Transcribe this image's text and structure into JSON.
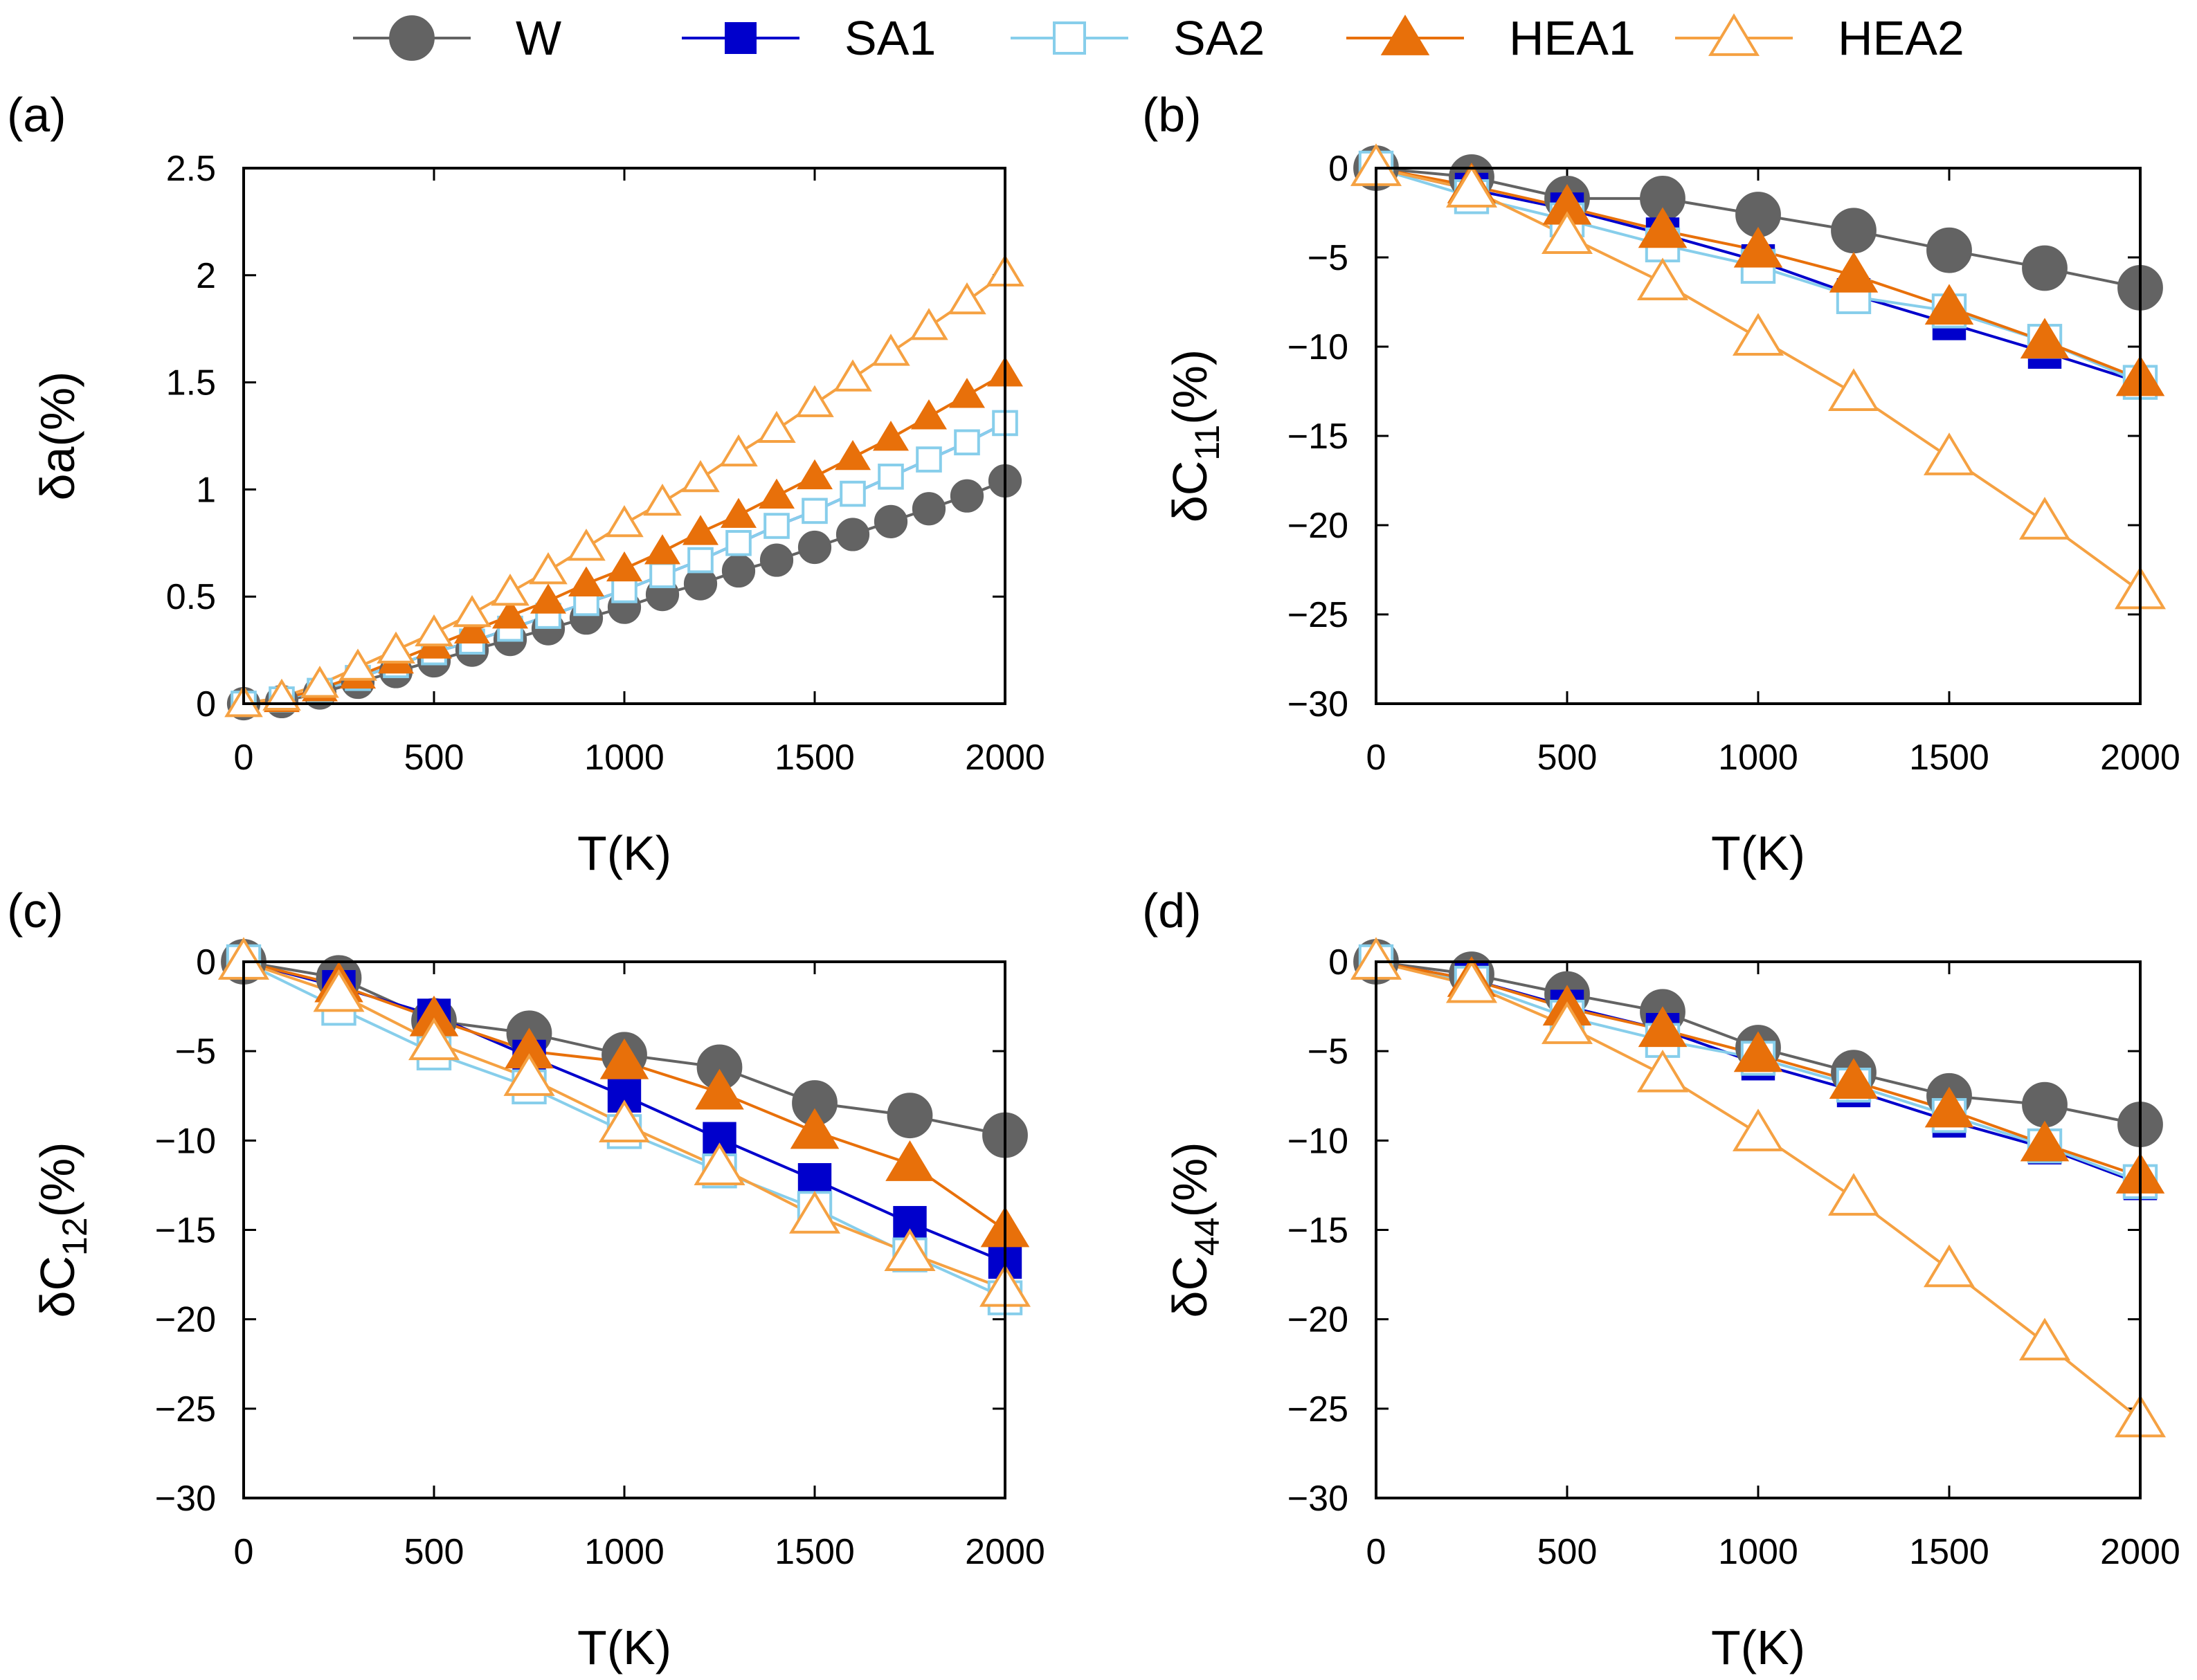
{
  "legend": [
    {
      "name": "W",
      "color": "#636363",
      "marker": "circle",
      "filled": true
    },
    {
      "name": "SA1",
      "color": "#0000cc",
      "marker": "square",
      "filled": true
    },
    {
      "name": "SA2",
      "color": "#87ceeb",
      "marker": "square",
      "filled": false
    },
    {
      "name": "HEA1",
      "color": "#e8700a",
      "marker": "triangle",
      "filled": true
    },
    {
      "name": "HEA2",
      "color": "#f5a142",
      "marker": "triangle",
      "filled": false
    }
  ],
  "chart_data": [
    {
      "panel": "(a)",
      "type": "line",
      "xlabel": "T(K)",
      "ylabel": "δa(%)",
      "ylabel_main": "δa(%)",
      "ylabel_sub": "",
      "ylabel_suffix": "",
      "xlim": [
        0,
        2000
      ],
      "ylim": [
        0,
        2.5
      ],
      "xticks": [
        0,
        500,
        1000,
        1500,
        2000
      ],
      "yticks": [
        0,
        0.5,
        1,
        1.5,
        2,
        2.5
      ],
      "ytick_labels": [
        "0",
        "0.5",
        "1",
        "1.5",
        "2",
        "2.5"
      ],
      "series": [
        {
          "name": "W",
          "x": [
            0,
            100,
            200,
            300,
            400,
            500,
            600,
            700,
            800,
            900,
            1000,
            1100,
            1200,
            1300,
            1400,
            1500,
            1600,
            1700,
            1800,
            1900,
            2000
          ],
          "y": [
            0,
            0.01,
            0.05,
            0.1,
            0.15,
            0.2,
            0.25,
            0.3,
            0.35,
            0.4,
            0.45,
            0.51,
            0.56,
            0.62,
            0.67,
            0.73,
            0.79,
            0.85,
            0.91,
            0.97,
            1.04
          ]
        },
        {
          "name": "SA1",
          "x": [
            0,
            100,
            200,
            300,
            400,
            500,
            600,
            700,
            800,
            900,
            1000,
            1100,
            1200,
            1300,
            1400,
            1500,
            1600,
            1700,
            1800,
            1900,
            2000
          ],
          "y": [
            0,
            0.02,
            0.06,
            0.12,
            0.18,
            0.24,
            0.29,
            0.35,
            0.41,
            0.47,
            0.53,
            0.6,
            0.67,
            0.75,
            0.83,
            0.9,
            0.98,
            1.06,
            1.14,
            1.22,
            1.31
          ]
        },
        {
          "name": "SA2",
          "x": [
            0,
            100,
            200,
            300,
            400,
            500,
            600,
            700,
            800,
            900,
            1000,
            1100,
            1200,
            1300,
            1400,
            1500,
            1600,
            1700,
            1800,
            1900,
            2000
          ],
          "y": [
            0,
            0.02,
            0.06,
            0.12,
            0.18,
            0.24,
            0.29,
            0.35,
            0.41,
            0.47,
            0.53,
            0.6,
            0.67,
            0.75,
            0.83,
            0.9,
            0.98,
            1.06,
            1.14,
            1.22,
            1.31
          ]
        },
        {
          "name": "HEA1",
          "x": [
            0,
            100,
            200,
            300,
            400,
            500,
            600,
            700,
            800,
            900,
            1000,
            1100,
            1200,
            1300,
            1400,
            1500,
            1600,
            1700,
            1800,
            1900,
            2000
          ],
          "y": [
            0,
            0.02,
            0.07,
            0.13,
            0.2,
            0.27,
            0.34,
            0.41,
            0.48,
            0.56,
            0.63,
            0.71,
            0.8,
            0.88,
            0.97,
            1.06,
            1.15,
            1.24,
            1.34,
            1.44,
            1.54
          ]
        },
        {
          "name": "HEA2",
          "x": [
            0,
            100,
            200,
            300,
            400,
            500,
            600,
            700,
            800,
            900,
            1000,
            1100,
            1200,
            1300,
            1400,
            1500,
            1600,
            1700,
            1800,
            1900,
            2000
          ],
          "y": [
            0,
            0.03,
            0.09,
            0.17,
            0.25,
            0.33,
            0.42,
            0.52,
            0.62,
            0.73,
            0.84,
            0.94,
            1.05,
            1.17,
            1.28,
            1.4,
            1.52,
            1.64,
            1.76,
            1.88,
            2.01
          ]
        }
      ]
    },
    {
      "panel": "(b)",
      "type": "line",
      "xlabel": "T(K)",
      "ylabel": "δC11(%)",
      "ylabel_main": "δC",
      "ylabel_sub": "11",
      "ylabel_suffix": "(%)",
      "xlim": [
        0,
        2000
      ],
      "ylim": [
        -30,
        0
      ],
      "xticks": [
        0,
        500,
        1000,
        1500,
        2000
      ],
      "yticks": [
        -30,
        -25,
        -20,
        -15,
        -10,
        -5,
        0
      ],
      "ytick_labels": [
        "−30",
        "−25",
        "−20",
        "−15",
        "−10",
        "−5",
        "0"
      ],
      "series": [
        {
          "name": "W",
          "x": [
            0,
            250,
            500,
            750,
            1000,
            1250,
            1500,
            1750,
            2000
          ],
          "y": [
            0,
            -0.5,
            -1.7,
            -1.7,
            -2.6,
            -3.5,
            -4.6,
            -5.6,
            -6.7
          ]
        },
        {
          "name": "SA1",
          "x": [
            0,
            250,
            500,
            750,
            1000,
            1250,
            1500,
            1750,
            2000
          ],
          "y": [
            0,
            -1.2,
            -2.3,
            -3.7,
            -5.2,
            -7.1,
            -8.7,
            -10.3,
            -12.0
          ]
        },
        {
          "name": "SA2",
          "x": [
            0,
            250,
            500,
            750,
            1000,
            1250,
            1500,
            1750,
            2000
          ],
          "y": [
            0,
            -1.6,
            -2.9,
            -4.3,
            -5.5,
            -7.2,
            -8.0,
            -9.7,
            -12.0
          ]
        },
        {
          "name": "HEA1",
          "x": [
            0,
            250,
            500,
            750,
            1000,
            1250,
            1500,
            1750,
            2000
          ],
          "y": [
            0,
            -1.0,
            -2.2,
            -3.5,
            -4.6,
            -6.0,
            -7.8,
            -9.7,
            -11.8
          ]
        },
        {
          "name": "HEA2",
          "x": [
            0,
            250,
            500,
            750,
            1000,
            1250,
            1500,
            1750,
            2000
          ],
          "y": [
            0,
            -1.2,
            -3.8,
            -6.4,
            -9.5,
            -12.6,
            -16.2,
            -19.8,
            -23.7
          ]
        }
      ]
    },
    {
      "panel": "(c)",
      "type": "line",
      "xlabel": "T(K)",
      "ylabel": "δC12(%)",
      "ylabel_main": "δC",
      "ylabel_sub": "12",
      "ylabel_suffix": "(%)",
      "xlim": [
        0,
        2000
      ],
      "ylim": [
        -30,
        0
      ],
      "xticks": [
        0,
        500,
        1000,
        1500,
        2000
      ],
      "yticks": [
        -30,
        -25,
        -20,
        -15,
        -10,
        -5,
        0
      ],
      "ytick_labels": [
        "−30",
        "−25",
        "−20",
        "−15",
        "−10",
        "−5",
        "0"
      ],
      "series": [
        {
          "name": "W",
          "x": [
            0,
            250,
            500,
            750,
            1000,
            1250,
            1500,
            1750,
            2000
          ],
          "y": [
            0,
            -0.9,
            -3.3,
            -4.0,
            -5.2,
            -5.9,
            -7.9,
            -8.6,
            -9.7
          ]
        },
        {
          "name": "SA1",
          "x": [
            0,
            250,
            500,
            750,
            1000,
            1250,
            1500,
            1750,
            2000
          ],
          "y": [
            0,
            -1.4,
            -3.0,
            -5.3,
            -7.5,
            -9.9,
            -12.2,
            -14.6,
            -16.8
          ]
        },
        {
          "name": "SA2",
          "x": [
            0,
            250,
            500,
            750,
            1000,
            1250,
            1500,
            1750,
            2000
          ],
          "y": [
            0,
            -2.6,
            -5.1,
            -7.0,
            -9.5,
            -11.7,
            -13.8,
            -16.4,
            -18.8
          ]
        },
        {
          "name": "HEA1",
          "x": [
            0,
            250,
            500,
            750,
            1000,
            1250,
            1500,
            1750,
            2000
          ],
          "y": [
            0,
            -1.3,
            -3.2,
            -5.0,
            -5.6,
            -7.3,
            -9.5,
            -11.3,
            -15.0
          ]
        },
        {
          "name": "HEA2",
          "x": [
            0,
            250,
            500,
            750,
            1000,
            1250,
            1500,
            1750,
            2000
          ],
          "y": [
            0,
            -1.8,
            -4.5,
            -6.5,
            -9.1,
            -11.5,
            -14.2,
            -16.3,
            -18.3
          ]
        }
      ]
    },
    {
      "panel": "(d)",
      "type": "line",
      "xlabel": "T(K)",
      "ylabel": "δC44(%)",
      "ylabel_main": "δC",
      "ylabel_sub": "44",
      "ylabel_suffix": "(%)",
      "xlim": [
        0,
        2000
      ],
      "ylim": [
        -30,
        0
      ],
      "xticks": [
        0,
        500,
        1000,
        1500,
        2000
      ],
      "yticks": [
        -30,
        -25,
        -20,
        -15,
        -10,
        -5,
        0
      ],
      "ytick_labels": [
        "−30",
        "−25",
        "−20",
        "−15",
        "−10",
        "−5",
        "0"
      ],
      "series": [
        {
          "name": "W",
          "x": [
            0,
            250,
            500,
            750,
            1000,
            1250,
            1500,
            1750,
            2000
          ],
          "y": [
            0,
            -0.7,
            -1.8,
            -2.8,
            -4.8,
            -6.2,
            -7.5,
            -8.0,
            -9.1
          ]
        },
        {
          "name": "SA1",
          "x": [
            0,
            250,
            500,
            750,
            1000,
            1250,
            1500,
            1750,
            2000
          ],
          "y": [
            0,
            -1.0,
            -2.5,
            -3.8,
            -5.7,
            -7.2,
            -8.9,
            -10.4,
            -12.4
          ]
        },
        {
          "name": "SA2",
          "x": [
            0,
            250,
            500,
            750,
            1000,
            1250,
            1500,
            1750,
            2000
          ],
          "y": [
            0,
            -1.2,
            -3.1,
            -4.4,
            -5.4,
            -6.9,
            -8.6,
            -10.3,
            -12.3
          ]
        },
        {
          "name": "HEA1",
          "x": [
            0,
            250,
            500,
            750,
            1000,
            1250,
            1500,
            1750,
            2000
          ],
          "y": [
            0,
            -1.0,
            -2.6,
            -3.8,
            -5.2,
            -6.7,
            -8.3,
            -10.2,
            -12.0
          ]
        },
        {
          "name": "HEA2",
          "x": [
            0,
            250,
            500,
            750,
            1000,
            1250,
            1500,
            1750,
            2000
          ],
          "y": [
            0,
            -1.3,
            -3.6,
            -6.3,
            -9.6,
            -13.2,
            -17.2,
            -21.3,
            -25.6
          ]
        }
      ]
    }
  ]
}
